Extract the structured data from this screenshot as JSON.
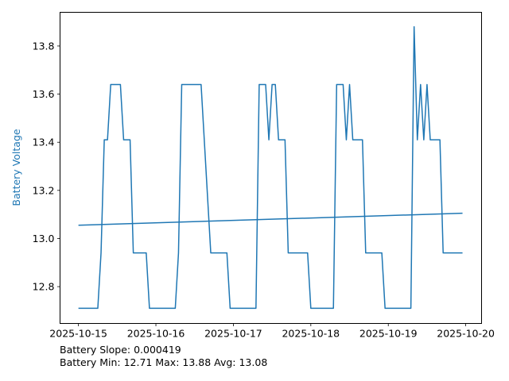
{
  "chart_data": {
    "type": "line",
    "title": "",
    "xlabel": "",
    "ylabel": "Battery Voltage",
    "x_unit": "hours since 2025-10-15 00:00",
    "xlim": [
      -5.7,
      124.9
    ],
    "ylim": [
      12.647,
      13.94
    ],
    "grid": false,
    "x_ticks": [
      {
        "value": 0,
        "label": "2025-10-15"
      },
      {
        "value": 24,
        "label": "2025-10-16"
      },
      {
        "value": 48,
        "label": "2025-10-17"
      },
      {
        "value": 72,
        "label": "2025-10-18"
      },
      {
        "value": 96,
        "label": "2025-10-19"
      },
      {
        "value": 120,
        "label": "2025-10-20"
      }
    ],
    "y_ticks": [
      {
        "value": 12.8,
        "label": "12.8"
      },
      {
        "value": 13.0,
        "label": "13.0"
      },
      {
        "value": 13.2,
        "label": "13.2"
      },
      {
        "value": 13.4,
        "label": "13.4"
      },
      {
        "value": 13.6,
        "label": "13.6"
      },
      {
        "value": 13.8,
        "label": "13.8"
      }
    ],
    "series": [
      {
        "name": "Battery Voltage",
        "color": "#1f77b4",
        "points": [
          [
            0,
            12.71
          ],
          [
            6,
            12.71
          ],
          [
            7,
            12.94
          ],
          [
            8,
            13.41
          ],
          [
            9,
            13.41
          ],
          [
            10,
            13.64
          ],
          [
            13,
            13.64
          ],
          [
            14,
            13.41
          ],
          [
            16,
            13.41
          ],
          [
            17,
            12.94
          ],
          [
            21,
            12.94
          ],
          [
            22,
            12.71
          ],
          [
            30,
            12.71
          ],
          [
            31,
            12.94
          ],
          [
            32,
            13.64
          ],
          [
            38,
            13.64
          ],
          [
            41,
            12.94
          ],
          [
            46,
            12.94
          ],
          [
            47,
            12.71
          ],
          [
            55,
            12.71
          ],
          [
            56,
            13.64
          ],
          [
            58,
            13.64
          ],
          [
            59,
            13.41
          ],
          [
            60,
            13.64
          ],
          [
            61,
            13.64
          ],
          [
            62,
            13.41
          ],
          [
            64,
            13.41
          ],
          [
            65,
            12.94
          ],
          [
            71,
            12.94
          ],
          [
            72,
            12.71
          ],
          [
            79,
            12.71
          ],
          [
            80,
            13.64
          ],
          [
            82,
            13.64
          ],
          [
            83,
            13.41
          ],
          [
            84,
            13.64
          ],
          [
            85,
            13.41
          ],
          [
            88,
            13.41
          ],
          [
            89,
            12.94
          ],
          [
            94,
            12.94
          ],
          [
            95,
            12.71
          ],
          [
            103,
            12.71
          ],
          [
            104,
            13.88
          ],
          [
            105,
            13.41
          ],
          [
            106,
            13.64
          ],
          [
            107,
            13.41
          ],
          [
            108,
            13.64
          ],
          [
            109,
            13.41
          ],
          [
            112,
            13.41
          ],
          [
            113,
            12.94
          ],
          [
            119,
            12.94
          ]
        ]
      },
      {
        "name": "Trend",
        "color": "#1f77b4",
        "points": [
          [
            0,
            13.055
          ],
          [
            119,
            13.105
          ]
        ]
      }
    ],
    "annotations": [
      "Battery Slope: 0.000419",
      "Battery Min: 12.71 Max: 13.88 Avg: 13.08"
    ]
  }
}
